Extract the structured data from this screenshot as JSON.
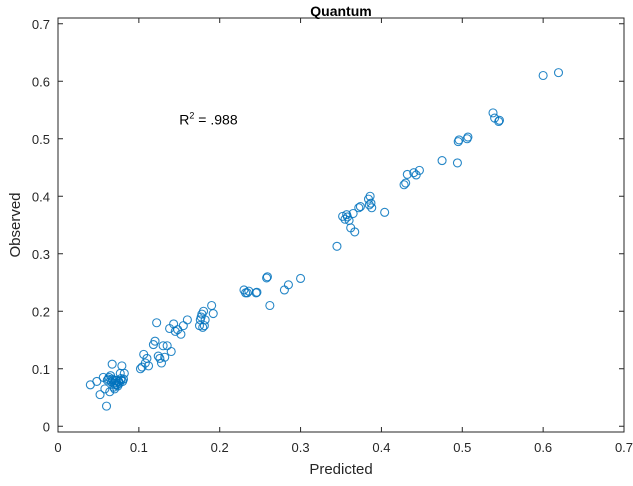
{
  "chart_data": {
    "type": "scatter",
    "title": "Quantum",
    "xlabel": "Predicted",
    "ylabel": "Observed",
    "xlim": [
      0,
      0.7
    ],
    "ylim": [
      -0.01,
      0.71
    ],
    "x_ticks": [
      "0",
      "0.1",
      "0.2",
      "0.3",
      "0.4",
      "0.5",
      "0.6",
      "0.7"
    ],
    "y_ticks": [
      "0",
      "0.1",
      "0.2",
      "0.3",
      "0.4",
      "0.5",
      "0.6",
      "0.7"
    ],
    "annotation": {
      "prefix": "R",
      "superscript": "2",
      "suffix": " = .988",
      "x": 0.15,
      "y": 0.525
    },
    "grid": false,
    "marker": "open-circle",
    "marker_color": "#0072BD",
    "series": [
      {
        "x": [
          0.04,
          0.048,
          0.052,
          0.056,
          0.058,
          0.06,
          0.061,
          0.062,
          0.064,
          0.066,
          0.067,
          0.068,
          0.069,
          0.07,
          0.071,
          0.072,
          0.073,
          0.074,
          0.075,
          0.076,
          0.077,
          0.078,
          0.079,
          0.08,
          0.081,
          0.082,
          0.063,
          0.065,
          0.067,
          0.069,
          0.071,
          0.073,
          0.075,
          0.078,
          0.102,
          0.104,
          0.106,
          0.108,
          0.11,
          0.112,
          0.118,
          0.12,
          0.122,
          0.124,
          0.126,
          0.128,
          0.13,
          0.132,
          0.135,
          0.138,
          0.14,
          0.143,
          0.145,
          0.148,
          0.152,
          0.155,
          0.16,
          0.175,
          0.176,
          0.177,
          0.178,
          0.179,
          0.18,
          0.181,
          0.182,
          0.19,
          0.192,
          0.23,
          0.232,
          0.234,
          0.236,
          0.245,
          0.246,
          0.258,
          0.259,
          0.262,
          0.28,
          0.285,
          0.3,
          0.345,
          0.352,
          0.355,
          0.357,
          0.358,
          0.36,
          0.362,
          0.365,
          0.367,
          0.372,
          0.374,
          0.384,
          0.385,
          0.386,
          0.387,
          0.388,
          0.404,
          0.428,
          0.43,
          0.432,
          0.44,
          0.443,
          0.447,
          0.475,
          0.494,
          0.495,
          0.496,
          0.506,
          0.507,
          0.538,
          0.54,
          0.545,
          0.546,
          0.6,
          0.619
        ],
        "y": [
          0.072,
          0.078,
          0.055,
          0.085,
          0.065,
          0.035,
          0.08,
          0.082,
          0.06,
          0.077,
          0.108,
          0.08,
          0.068,
          0.065,
          0.072,
          0.075,
          0.08,
          0.07,
          0.078,
          0.075,
          0.092,
          0.08,
          0.105,
          0.078,
          0.082,
          0.092,
          0.085,
          0.088,
          0.082,
          0.075,
          0.08,
          0.072,
          0.078,
          0.083,
          0.1,
          0.103,
          0.125,
          0.11,
          0.118,
          0.105,
          0.142,
          0.148,
          0.18,
          0.122,
          0.118,
          0.11,
          0.14,
          0.12,
          0.14,
          0.17,
          0.13,
          0.178,
          0.165,
          0.168,
          0.16,
          0.175,
          0.185,
          0.175,
          0.185,
          0.19,
          0.195,
          0.172,
          0.2,
          0.175,
          0.185,
          0.21,
          0.196,
          0.237,
          0.232,
          0.232,
          0.235,
          0.232,
          0.233,
          0.258,
          0.26,
          0.21,
          0.237,
          0.246,
          0.257,
          0.313,
          0.365,
          0.36,
          0.368,
          0.364,
          0.358,
          0.345,
          0.37,
          0.338,
          0.38,
          0.382,
          0.395,
          0.385,
          0.4,
          0.388,
          0.38,
          0.372,
          0.42,
          0.423,
          0.438,
          0.441,
          0.437,
          0.445,
          0.462,
          0.458,
          0.495,
          0.498,
          0.5,
          0.503,
          0.545,
          0.536,
          0.53,
          0.532,
          0.61,
          0.615
        ]
      }
    ]
  }
}
